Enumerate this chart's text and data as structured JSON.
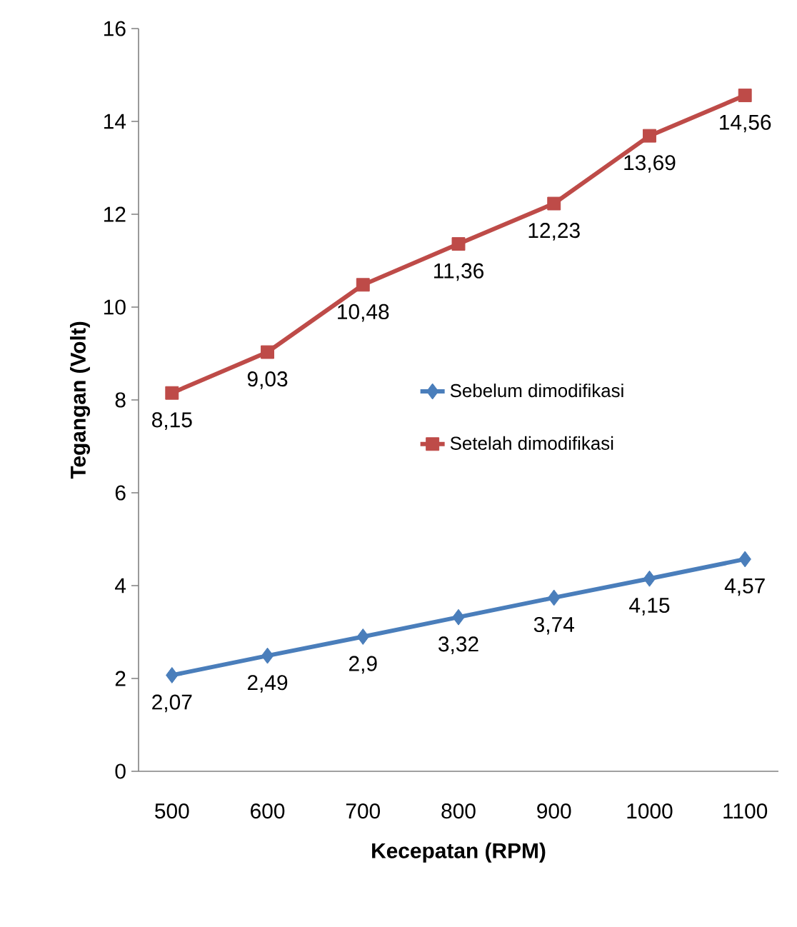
{
  "chart_data": {
    "type": "line",
    "xlabel": "Kecepatan (RPM)",
    "ylabel": "Tegangan (Volt)",
    "categories": [
      "500",
      "600",
      "700",
      "800",
      "900",
      "1000",
      "1100"
    ],
    "ylim": [
      0,
      16
    ],
    "yticks": [
      0,
      2,
      4,
      6,
      8,
      10,
      12,
      14,
      16
    ],
    "grid": false,
    "legend": "center right",
    "series": [
      {
        "name": "Sebelum dimodifikasi",
        "color": "#4a7ebb",
        "marker": "diamond",
        "values": [
          2.07,
          2.49,
          2.9,
          3.32,
          3.74,
          4.15,
          4.57
        ],
        "value_labels": [
          "2,07",
          "2,49",
          "2,9",
          "3,32",
          "3,74",
          "4,15",
          "4,57"
        ]
      },
      {
        "name": "Setelah dimodifikasi",
        "color": "#be4b48",
        "marker": "square",
        "values": [
          8.15,
          9.03,
          10.48,
          11.36,
          12.23,
          13.69,
          14.56
        ],
        "value_labels": [
          "8,15",
          "9,03",
          "10,48",
          "11,36",
          "12,23",
          "13,69",
          "14,56"
        ]
      }
    ]
  }
}
